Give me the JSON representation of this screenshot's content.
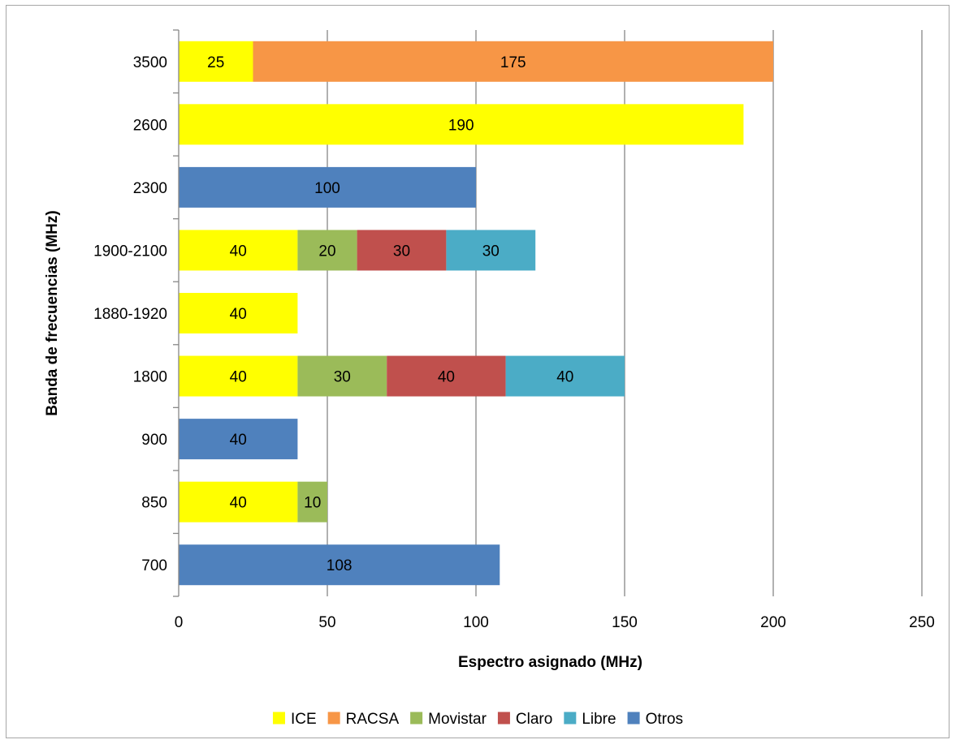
{
  "chart_data": {
    "type": "bar",
    "orientation": "horizontal",
    "stacked": true,
    "title": "",
    "xlabel": "Espectro asignado (MHz)",
    "ylabel": "Banda de frecuencias (MHz)",
    "xlim": [
      0,
      250
    ],
    "x_ticks": [
      "0",
      "50",
      "100",
      "150",
      "200",
      "250"
    ],
    "x_tick_values": [
      0,
      50,
      100,
      150,
      200,
      250
    ],
    "grid": true,
    "legend_position": "bottom",
    "categories": [
      "700",
      "850",
      "900",
      "1800",
      "1880-1920",
      "1900-2100",
      "2300",
      "2600",
      "3500"
    ],
    "series": [
      {
        "name": "ICE",
        "color": "#ffff00",
        "values": [
          0,
          40,
          0,
          40,
          40,
          40,
          0,
          190,
          25
        ]
      },
      {
        "name": "RACSA",
        "color": "#f79646",
        "values": [
          0,
          0,
          0,
          0,
          0,
          0,
          0,
          0,
          175
        ]
      },
      {
        "name": "Movistar",
        "color": "#9bbb59",
        "values": [
          0,
          10,
          0,
          30,
          0,
          20,
          0,
          0,
          0
        ]
      },
      {
        "name": "Claro",
        "color": "#c0504d",
        "values": [
          0,
          0,
          0,
          40,
          0,
          30,
          0,
          0,
          0
        ]
      },
      {
        "name": "Libre",
        "color": "#4bacc6",
        "values": [
          0,
          0,
          0,
          40,
          0,
          30,
          0,
          0,
          0
        ]
      },
      {
        "name": "Otros",
        "color": "#4f81bd",
        "values": [
          108,
          0,
          40,
          0,
          0,
          0,
          100,
          0,
          0
        ]
      }
    ]
  }
}
